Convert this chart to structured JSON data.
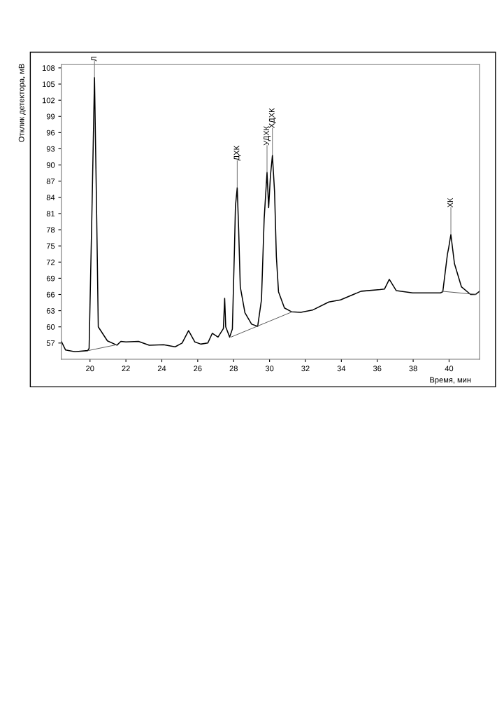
{
  "chart_data": {
    "type": "line",
    "xlabel": "Время, мин",
    "ylabel": "Отклик детектора, мВ",
    "xlim": [
      18.4,
      41.7
    ],
    "ylim": [
      54,
      108.6
    ],
    "xticks": [
      20,
      22,
      24,
      26,
      28,
      30,
      32,
      34,
      36,
      38,
      40
    ],
    "yticks": [
      57,
      60,
      63,
      66,
      69,
      72,
      75,
      78,
      81,
      84,
      87,
      90,
      93,
      96,
      99,
      102,
      105,
      108
    ],
    "grid": false,
    "legend": false,
    "marker": "none",
    "line_style": "solid",
    "series": [
      {
        "color": "#000000",
        "x": [
          18.42,
          18.64,
          19.16,
          19.87,
          19.95,
          20.1,
          20.25,
          20.37,
          20.46,
          20.97,
          21.5,
          21.72,
          22.0,
          22.7,
          23.3,
          24.1,
          24.74,
          25.13,
          25.49,
          25.84,
          26.17,
          26.56,
          26.81,
          27.13,
          27.43,
          27.5,
          27.56,
          27.78,
          27.93,
          28.05,
          28.1,
          28.2,
          28.28,
          28.37,
          28.63,
          29.0,
          29.34,
          29.55,
          29.7,
          29.86,
          29.95,
          30.05,
          30.16,
          30.28,
          30.38,
          30.5,
          30.83,
          31.22,
          31.74,
          32.39,
          33.3,
          33.95,
          35.1,
          36.15,
          36.4,
          36.67,
          37.06,
          37.97,
          39.52,
          39.65,
          39.91,
          39.97,
          40.1,
          40.3,
          40.69,
          41.2,
          41.47,
          41.7
        ],
        "values": [
          57.2,
          55.7,
          55.4,
          55.6,
          56.0,
          80,
          106.2,
          81,
          60.0,
          57.4,
          56.6,
          57.3,
          57.2,
          57.3,
          56.6,
          56.7,
          56.3,
          57.0,
          59.3,
          57.2,
          56.8,
          57.0,
          58.8,
          58.1,
          59.7,
          65.3,
          60,
          58.1,
          59.6,
          75,
          82.3,
          85.8,
          78,
          67.4,
          62.6,
          60.5,
          60.1,
          65,
          80,
          88.6,
          82.1,
          88,
          91.8,
          85,
          73.0,
          66.5,
          63.5,
          62.8,
          62.7,
          63.1,
          64.6,
          65.0,
          66.6,
          66.9,
          67.0,
          68.8,
          66.7,
          66.3,
          66.3,
          66.5,
          73.5,
          74.5,
          77.1,
          71.7,
          67.4,
          66.0,
          66.0,
          66.6
        ]
      },
      {
        "color": "#555555",
        "x": [
          19.9,
          21.5
        ],
        "values": [
          55.6,
          56.7
        ]
      },
      {
        "color": "#555555",
        "x": [
          27.85,
          31.2
        ],
        "values": [
          58.1,
          62.7
        ]
      },
      {
        "color": "#555555",
        "x": [
          39.6,
          41.5
        ],
        "values": [
          66.6,
          66.0
        ]
      }
    ],
    "annotations": [
      {
        "text": "Л",
        "x": 20.25,
        "y": 106.2
      },
      {
        "text": "ДХК",
        "x": 28.2,
        "y": 85.8
      },
      {
        "text": "УДХК",
        "x": 29.86,
        "y": 88.6
      },
      {
        "text": "ХДХК",
        "x": 30.16,
        "y": 91.8
      },
      {
        "text": "ХК",
        "x": 40.1,
        "y": 77.1
      }
    ]
  }
}
